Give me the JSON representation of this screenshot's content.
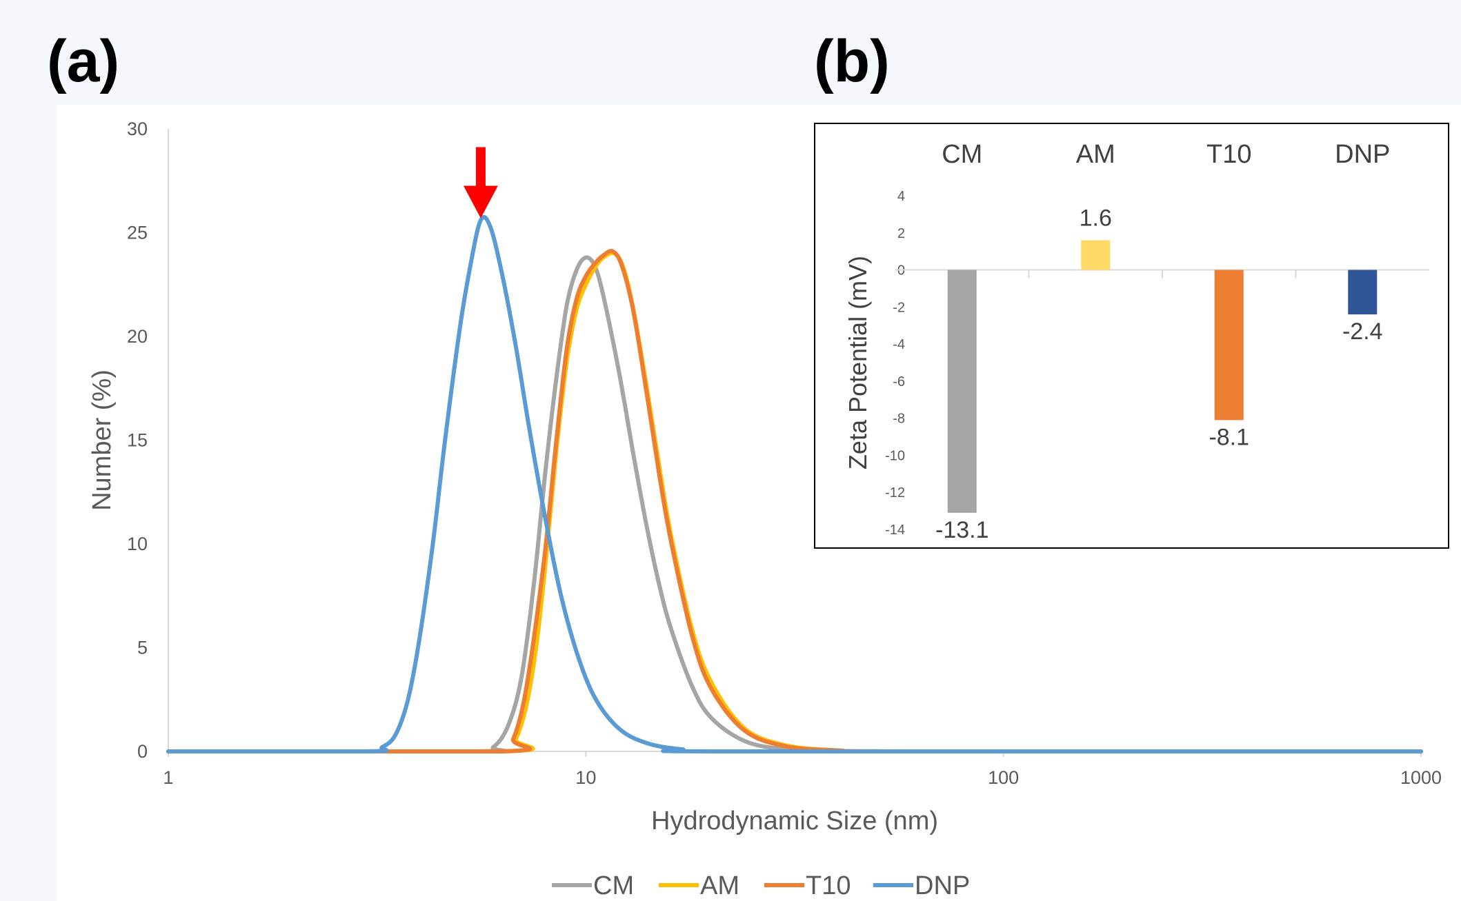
{
  "panels": {
    "a": "(a)",
    "b": "(b)"
  },
  "colors": {
    "CM": "#a5a5a5",
    "AM": "#ffc000",
    "T10": "#ed7d31",
    "DNP": "#5b9bd5",
    "arrow": "#ff0000",
    "bar_AM": "#ffd966",
    "bar_DNP": "#2f5597"
  },
  "chart_data": [
    {
      "type": "line",
      "xlabel": "Hydrodynamic Size (nm)",
      "ylabel": "Number (%)",
      "x_scale": "log",
      "xlim": [
        1,
        1000
      ],
      "ylim": [
        0,
        30
      ],
      "x_ticks": [
        1,
        10,
        100,
        1000
      ],
      "x_tick_labels": [
        "1",
        "10",
        "100",
        "1000"
      ],
      "y_ticks": [
        0,
        5,
        10,
        15,
        20,
        25,
        30
      ],
      "y_tick_labels": [
        "0",
        "5",
        "10",
        "15",
        "20",
        "25",
        "30"
      ],
      "legend_position": "bottom",
      "grid": false,
      "series": [
        {
          "name": "CM",
          "points": [
            [
              1,
              0
            ],
            [
              5.5,
              0
            ],
            [
              6,
              0.2
            ],
            [
              6.5,
              1.2
            ],
            [
              7,
              3.5
            ],
            [
              7.5,
              8
            ],
            [
              8,
              13.5
            ],
            [
              8.5,
              18
            ],
            [
              9,
              21.5
            ],
            [
              9.5,
              23.2
            ],
            [
              10,
              23.8
            ],
            [
              10.5,
              23.4
            ],
            [
              11,
              22
            ],
            [
              12,
              18.3
            ],
            [
              13,
              14.3
            ],
            [
              14,
              10.8
            ],
            [
              15,
              8
            ],
            [
              16,
              5.9
            ],
            [
              18,
              3.1
            ],
            [
              20,
              1.6
            ],
            [
              24,
              0.5
            ],
            [
              30,
              0.1
            ],
            [
              40,
              0
            ],
            [
              1000,
              0
            ]
          ]
        },
        {
          "name": "AM",
          "points": [
            [
              1,
              0
            ],
            [
              6.4,
              0
            ],
            [
              6.8,
              0.6
            ],
            [
              7.2,
              2.2
            ],
            [
              7.6,
              5
            ],
            [
              8,
              9
            ],
            [
              8.5,
              14.5
            ],
            [
              9,
              18.8
            ],
            [
              9.5,
              21.3
            ],
            [
              10,
              22.5
            ],
            [
              10.5,
              23.3
            ],
            [
              11,
              23.8
            ],
            [
              11.7,
              24
            ],
            [
              12.3,
              23.3
            ],
            [
              13,
              21.3
            ],
            [
              14,
              17.5
            ],
            [
              15,
              13.7
            ],
            [
              16,
              10.4
            ],
            [
              18,
              5.8
            ],
            [
              20,
              3.3
            ],
            [
              24,
              1.1
            ],
            [
              30,
              0.3
            ],
            [
              40,
              0.05
            ],
            [
              60,
              0
            ],
            [
              1000,
              0
            ]
          ]
        },
        {
          "name": "T10",
          "points": [
            [
              1,
              0
            ],
            [
              6.3,
              0
            ],
            [
              6.7,
              0.6
            ],
            [
              7.1,
              2.4
            ],
            [
              7.5,
              5.4
            ],
            [
              8,
              9.8
            ],
            [
              8.5,
              15
            ],
            [
              9,
              19.4
            ],
            [
              9.5,
              21.8
            ],
            [
              10,
              22.9
            ],
            [
              10.5,
              23.5
            ],
            [
              11,
              23.9
            ],
            [
              11.6,
              24.1
            ],
            [
              12.2,
              23.4
            ],
            [
              13,
              21.2
            ],
            [
              14,
              17.2
            ],
            [
              15,
              13.3
            ],
            [
              16,
              10.1
            ],
            [
              18,
              5.5
            ],
            [
              20,
              3
            ],
            [
              24,
              1
            ],
            [
              30,
              0.25
            ],
            [
              40,
              0.05
            ],
            [
              60,
              0
            ],
            [
              1000,
              0
            ]
          ]
        },
        {
          "name": "DNP",
          "points": [
            [
              1,
              0
            ],
            [
              3,
              0
            ],
            [
              3.25,
              0.2
            ],
            [
              3.5,
              0.8
            ],
            [
              3.75,
              2.5
            ],
            [
              4,
              5.5
            ],
            [
              4.3,
              10
            ],
            [
              4.6,
              15
            ],
            [
              5,
              20.5
            ],
            [
              5.3,
              23.5
            ],
            [
              5.6,
              25.6
            ],
            [
              5.9,
              25.3
            ],
            [
              6.3,
              23
            ],
            [
              6.8,
              19.5
            ],
            [
              7.3,
              15.7
            ],
            [
              8,
              11.2
            ],
            [
              8.7,
              7.6
            ],
            [
              9.5,
              4.8
            ],
            [
              10.5,
              2.6
            ],
            [
              12,
              1.1
            ],
            [
              14,
              0.4
            ],
            [
              17,
              0.1
            ],
            [
              22,
              0
            ],
            [
              1000,
              0
            ]
          ]
        }
      ],
      "annotation": {
        "type": "arrow",
        "x": 5.6,
        "y": 25.6
      }
    },
    {
      "type": "bar",
      "categories": [
        "CM",
        "AM",
        "T10",
        "DNP"
      ],
      "values": [
        -13.1,
        1.6,
        -8.1,
        -2.4
      ],
      "data_labels": [
        "-13.1",
        "1.6",
        "-8.1",
        "-2.4"
      ],
      "ylabel": "Zeta Potential (mV)",
      "ylim": [
        -14,
        4
      ],
      "y_ticks": [
        4,
        2,
        0,
        -2,
        -4,
        -6,
        -8,
        -10,
        -12,
        -14
      ],
      "y_tick_labels": [
        "4",
        "2",
        "0",
        "-2",
        "-4",
        "-6",
        "-8",
        "-10",
        "-12",
        "-14"
      ],
      "category_axis_position": "top",
      "grid": false
    }
  ]
}
